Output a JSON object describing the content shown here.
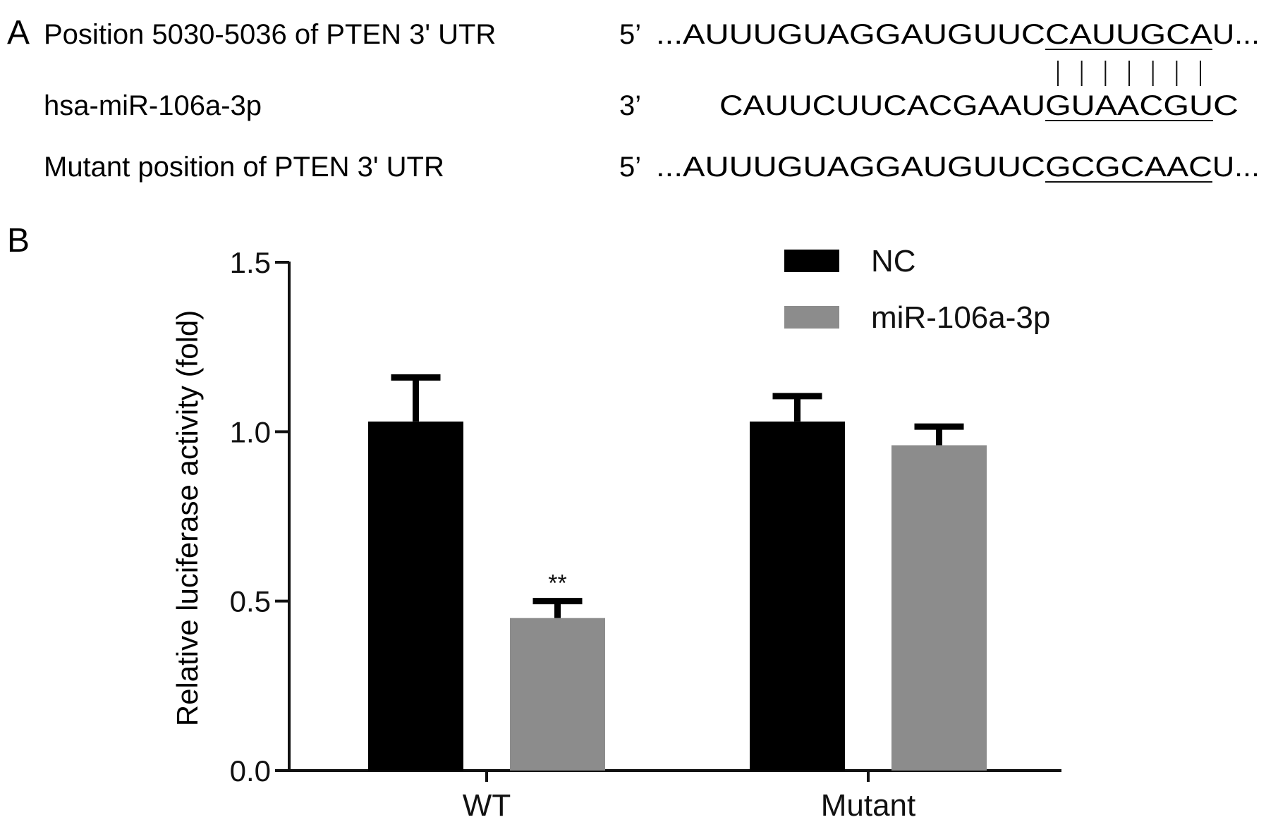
{
  "panel_a": {
    "label": "A",
    "rows": [
      {
        "name": "Position 5030-5036 of PTEN 3' UTR",
        "end": "5’",
        "dots": "...",
        "prefix": "AUUUGUAGGAUGUUC",
        "seed": "CAUUGCA",
        "suffix": "U..."
      },
      {
        "name": "hsa-miR-106a-3p",
        "end": "3’",
        "dots": "",
        "prefix": "CAUUCUUCACGAAU",
        "seed": "GUAACGU",
        "suffix": "C"
      },
      {
        "name": "Mutant position of PTEN 3' UTR",
        "end": "5’",
        "dots": "...",
        "prefix": "AUUUGUAGGAUGUUC",
        "seed": "GCGCAAC",
        "suffix": "U..."
      }
    ],
    "pairing_line_count": 7
  },
  "panel_b": {
    "label": "B"
  },
  "chart_data": {
    "type": "bar",
    "title": "",
    "xlabel": "",
    "ylabel": "Relative luciferase activity (fold)",
    "ylim": [
      0,
      1.5
    ],
    "yticks": [
      0.0,
      0.5,
      1.0,
      1.5
    ],
    "ytick_labels": [
      "0.0",
      "0.5",
      "1.0",
      "1.5"
    ],
    "categories": [
      "WT",
      "Mutant"
    ],
    "series": [
      {
        "name": "NC",
        "color": "#000000",
        "values": [
          1.03,
          1.03
        ],
        "errors": [
          0.13,
          0.075
        ]
      },
      {
        "name": "miR-106a-3p",
        "color": "#8c8c8c",
        "values": [
          0.45,
          0.96
        ],
        "errors": [
          0.05,
          0.055
        ]
      }
    ],
    "annotations": [
      {
        "text": "**",
        "category": "WT",
        "series": "miR-106a-3p"
      }
    ],
    "legend": {
      "position": "top-right"
    },
    "grid": false
  }
}
